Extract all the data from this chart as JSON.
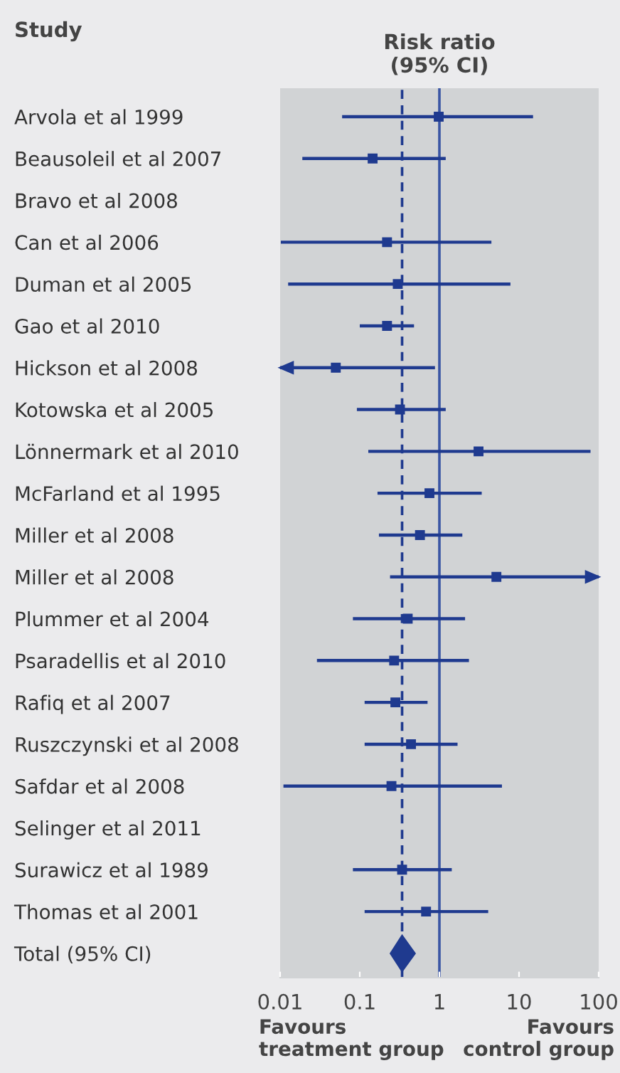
{
  "chart_data": {
    "type": "scatter",
    "orientation": "horizontal",
    "title": "Risk ratio\n(95% CI)",
    "ylabel": "Study",
    "log": "x",
    "categories": [
      "Arvola et al 1999",
      "Beausoleil et al 2007",
      "Bravo et al 2008",
      "Can et al 2006",
      "Duman et al 2005",
      "Gao et al 2010",
      "Hickson et al 2008",
      "Kotowska et al 2005",
      "Lönnermark et al 2010",
      "McFarland et al 1995",
      "Miller et al 2008",
      "Miller et al 2008",
      "Plummer et al 2004",
      "Psaradellis et al 2010",
      "Rafiq et al 2007",
      "Ruszczynski et al 2008",
      "Safdar et al 2008",
      "Selinger et al 2011",
      "Surawicz et al 1989",
      "Thomas et al 2001",
      "Total (95% CI)"
    ],
    "series": [
      {
        "color": "#1f3a8f",
        "marker": "square",
        "values": [
          0.98,
          0.145,
          null,
          0.22,
          0.3,
          0.22,
          0.05,
          0.32,
          3.1,
          0.75,
          0.57,
          5.2,
          0.4,
          0.27,
          0.28,
          0.44,
          0.25,
          null,
          0.34,
          0.68,
          null
        ],
        "errors": [
          [
            0.06,
            15
          ],
          [
            0.019,
            1.2
          ],
          null,
          [
            0.0102,
            4.5
          ],
          [
            0.0126,
            7.8
          ],
          [
            0.1,
            0.48
          ],
          [
            0.01,
            0.88
          ],
          [
            0.092,
            1.2
          ],
          [
            0.128,
            79
          ],
          [
            0.167,
            3.4
          ],
          [
            0.174,
            1.94
          ],
          [
            0.24,
            100
          ],
          [
            0.082,
            2.1
          ],
          [
            0.029,
            2.35
          ],
          [
            0.115,
            0.71
          ],
          [
            0.115,
            1.69
          ],
          [
            0.011,
            6.1
          ],
          null,
          [
            0.082,
            1.43
          ],
          [
            0.115,
            4.1
          ],
          null
        ]
      },
      {
        "color": "#1f3a8f",
        "marker": "diamond",
        "values": [
          null,
          null,
          null,
          null,
          null,
          null,
          null,
          null,
          null,
          null,
          null,
          null,
          null,
          null,
          null,
          null,
          null,
          null,
          null,
          null,
          0.34
        ],
        "errors": [
          null,
          null,
          null,
          null,
          null,
          null,
          null,
          null,
          null,
          null,
          null,
          null,
          null,
          null,
          null,
          null,
          null,
          null,
          null,
          null,
          [
            0.245,
            0.49
          ]
        ]
      }
    ],
    "xlim": [
      0.01,
      100
    ],
    "xticks": [
      0.01,
      0.1,
      1,
      10,
      100
    ],
    "ref_lines": [
      {
        "axis": "x",
        "value": 1,
        "color": "#3a55a4",
        "line_style": "solid"
      },
      {
        "axis": "x",
        "value": 0.34,
        "color": "#1f3a8f",
        "line_style": "dashed"
      }
    ],
    "grid": false,
    "annotations": [
      "Favours\ntreatment group",
      "Favours\ncontrol group"
    ]
  }
}
